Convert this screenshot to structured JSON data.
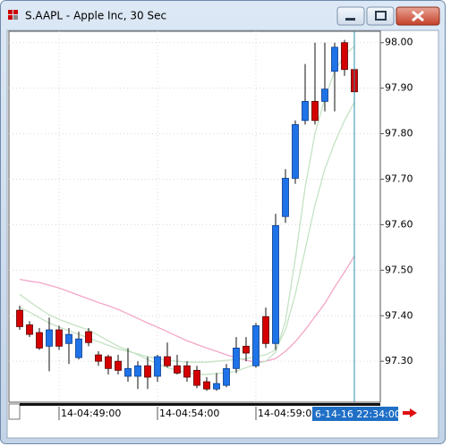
{
  "window": {
    "title": "S.AAPL - Apple Inc, 30 Sec"
  },
  "chart_data": {
    "type": "candlestick",
    "categories": [
      null,
      null,
      null,
      null,
      "14-04:49:00",
      null,
      null,
      null,
      null,
      null,
      null,
      null,
      null,
      null,
      "14-04:54:00",
      null,
      null,
      null,
      null,
      null,
      null,
      null,
      null,
      null,
      "14-04:59:00",
      null,
      null,
      null,
      null,
      null,
      null,
      null,
      null,
      null,
      null
    ],
    "open": [
      97.412,
      97.38,
      97.363,
      97.333,
      97.369,
      97.339,
      97.308,
      97.365,
      97.314,
      97.31,
      97.3,
      97.267,
      97.267,
      97.29,
      97.267,
      97.31,
      97.29,
      97.29,
      97.28,
      97.255,
      97.239,
      97.247,
      97.284,
      97.333,
      97.29,
      97.398,
      97.339,
      97.618,
      97.702,
      97.829,
      97.871,
      97.871,
      97.937,
      98.0,
      97.941
    ],
    "high": [
      97.422,
      97.388,
      97.373,
      97.396,
      97.378,
      97.373,
      97.365,
      97.373,
      97.322,
      97.314,
      97.314,
      97.329,
      97.3,
      97.31,
      97.314,
      97.341,
      97.314,
      97.3,
      97.29,
      97.265,
      97.274,
      97.294,
      97.353,
      97.353,
      97.384,
      97.418,
      97.624,
      97.722,
      97.829,
      97.953,
      98.0,
      98.0,
      98.0,
      98.006,
      97.967
    ],
    "low": [
      97.369,
      97.353,
      97.325,
      97.278,
      97.325,
      97.294,
      97.304,
      97.333,
      97.29,
      97.271,
      97.271,
      97.255,
      97.239,
      97.239,
      97.255,
      97.286,
      97.271,
      97.255,
      97.241,
      97.235,
      97.235,
      97.243,
      97.274,
      97.3,
      97.286,
      97.329,
      97.325,
      97.604,
      97.69,
      97.82,
      97.82,
      97.849,
      97.849,
      97.927,
      97.878
    ],
    "close": [
      97.376,
      97.359,
      97.329,
      97.369,
      97.333,
      97.359,
      97.349,
      97.341,
      97.3,
      97.284,
      97.28,
      97.284,
      97.29,
      97.265,
      97.31,
      97.29,
      97.274,
      97.265,
      97.247,
      97.239,
      97.251,
      97.284,
      97.329,
      97.318,
      97.378,
      97.339,
      97.598,
      97.702,
      97.82,
      97.871,
      97.829,
      97.898,
      97.99,
      97.941,
      97.892
    ],
    "up_color": "#1e73e8",
    "down_color": "#d40000",
    "overlays": [
      {
        "color": "#f4a6c8",
        "values": [
          97.48,
          97.476,
          97.473,
          97.467,
          97.461,
          97.453,
          97.445,
          97.437,
          97.429,
          97.422,
          97.414,
          97.404,
          97.394,
          97.384,
          97.375,
          97.365,
          97.355,
          97.345,
          97.337,
          97.329,
          97.322,
          97.314,
          97.308,
          97.302,
          97.298,
          97.3,
          97.306,
          97.322,
          97.343,
          97.369,
          97.398,
          97.427,
          97.463,
          97.496,
          97.531
        ]
      },
      {
        "color": "#c4e2c4",
        "values": [
          97.447,
          97.431,
          97.416,
          97.402,
          97.392,
          97.384,
          97.376,
          97.369,
          97.357,
          97.345,
          97.333,
          97.324,
          97.314,
          97.304,
          97.294,
          97.286,
          97.28,
          97.275,
          97.271,
          97.271,
          97.273,
          97.275,
          97.278,
          97.286,
          97.294,
          97.3,
          97.32,
          97.388,
          97.525,
          97.682,
          97.8,
          97.878,
          97.937,
          97.973,
          97.992
        ]
      },
      {
        "color": "#c4e2c4",
        "values": [
          97.418,
          97.408,
          97.396,
          97.384,
          97.375,
          97.367,
          97.359,
          97.351,
          97.343,
          97.335,
          97.327,
          97.322,
          97.316,
          97.31,
          97.306,
          97.302,
          97.3,
          97.298,
          97.298,
          97.298,
          97.3,
          97.302,
          97.304,
          97.306,
          97.31,
          97.314,
          97.325,
          97.369,
          97.447,
          97.545,
          97.643,
          97.722,
          97.78,
          97.829,
          97.869
        ]
      }
    ],
    "ylim": [
      97.21,
      98.025
    ],
    "yticks": [
      {
        "value": 97.3,
        "label": "97.30"
      },
      {
        "value": 97.4,
        "label": "97.40"
      },
      {
        "value": 97.5,
        "label": "97.50"
      },
      {
        "value": 97.6,
        "label": "97.60"
      },
      {
        "value": 97.7,
        "label": "97.70"
      },
      {
        "value": 97.8,
        "label": "97.80"
      },
      {
        "value": 97.9,
        "label": "97.90"
      },
      {
        "value": 98.0,
        "label": "98.00"
      }
    ],
    "grid": true,
    "crosshair_label": "6-14-16 22:34:00",
    "crosshair_color": "#2a8fa8"
  }
}
